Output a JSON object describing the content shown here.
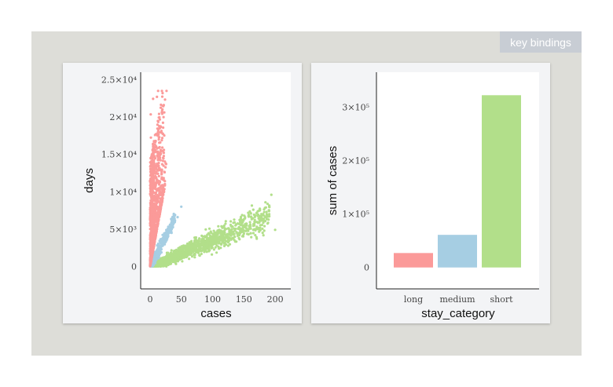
{
  "ui": {
    "key_bindings_label": "key bindings"
  },
  "colors": {
    "long": "#fb9a99",
    "medium": "#a6cee3",
    "short": "#b2df8a",
    "stage": "#ddddd8"
  },
  "chart_data": [
    {
      "type": "scatter",
      "xlabel": "cases",
      "ylabel": "days",
      "xlim": [
        -15,
        225
      ],
      "ylim": [
        -3000,
        26000
      ],
      "x_ticks": [
        0,
        50,
        100,
        150,
        200
      ],
      "x_tick_labels": [
        "0",
        "50",
        "100",
        "150",
        "200"
      ],
      "y_ticks": [
        0,
        5000,
        10000,
        15000,
        20000,
        25000
      ],
      "y_tick_labels": [
        "0",
        "5×10³",
        "1×10⁴",
        "1.5×10⁴",
        "2×10⁴",
        "2.5×10⁴"
      ],
      "series": [
        {
          "name": "long",
          "color": "#fb9a99",
          "count": 1400,
          "x_range": [
            0,
            30
          ],
          "y_max": 23500
        },
        {
          "name": "medium",
          "color": "#a6cee3",
          "count": 350,
          "x_range": [
            0,
            50
          ],
          "y_max": 7200
        },
        {
          "name": "short",
          "color": "#b2df8a",
          "count": 1700,
          "x_range": [
            0,
            200
          ],
          "y_max": 9600
        }
      ]
    },
    {
      "type": "bar",
      "xlabel": "stay_category",
      "ylabel": "sum of cases",
      "categories": [
        "long",
        "medium",
        "short"
      ],
      "values": [
        27000,
        61000,
        322000
      ],
      "colors": [
        "#fb9a99",
        "#a6cee3",
        "#b2df8a"
      ],
      "ylim": [
        -40000,
        365000
      ],
      "y_ticks": [
        0,
        100000,
        200000,
        300000
      ],
      "y_tick_labels": [
        "0",
        "1×10⁵",
        "2×10⁵",
        "3×10⁵"
      ]
    }
  ]
}
